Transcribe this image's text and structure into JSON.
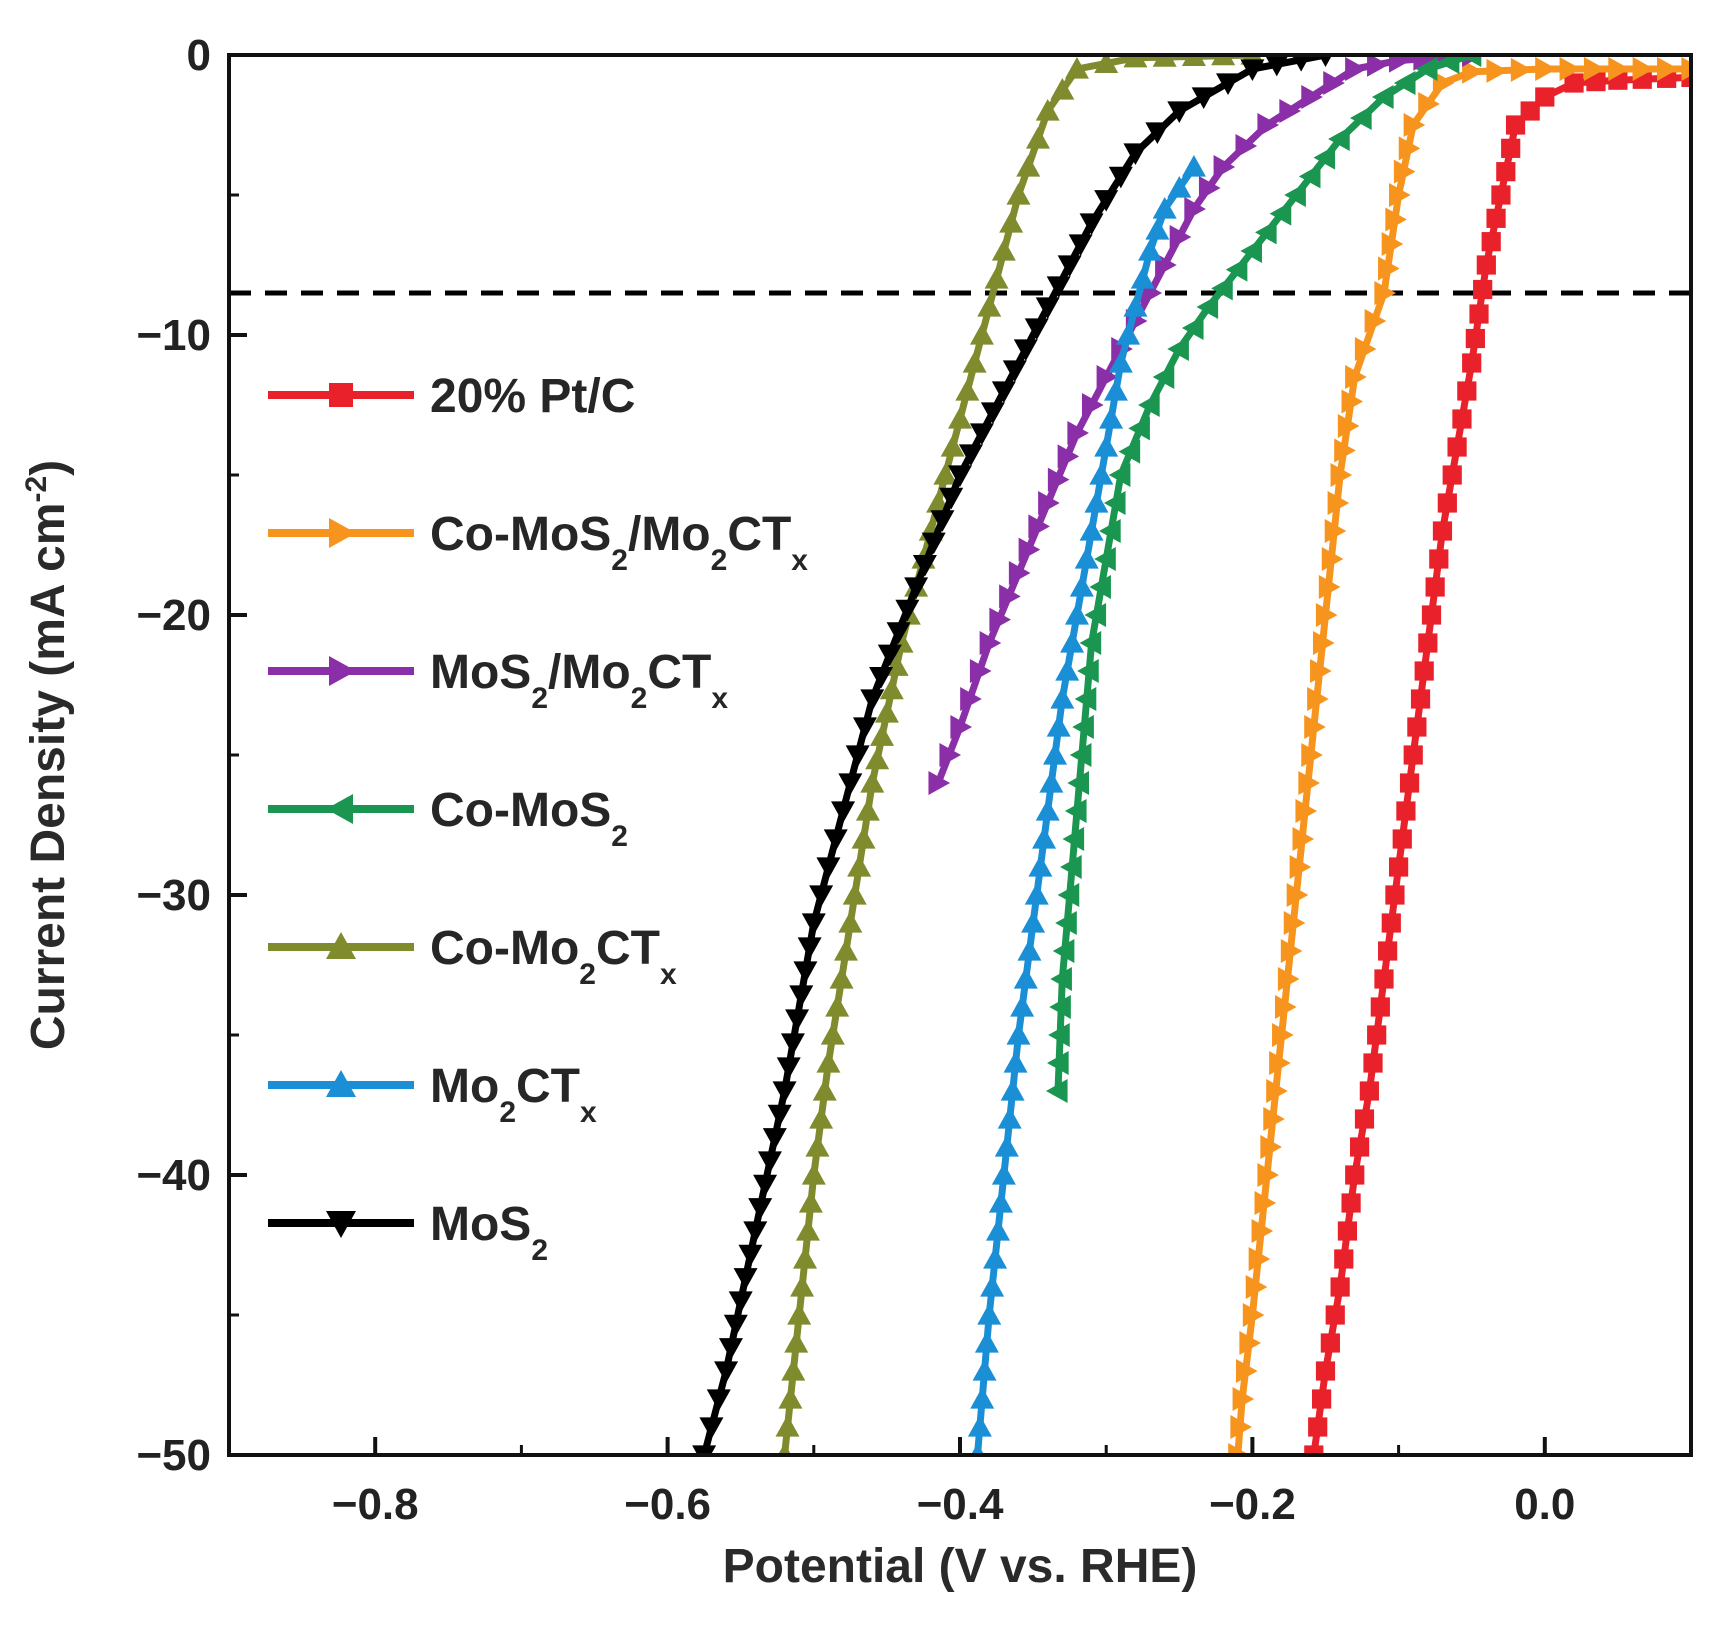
{
  "chart_data": {
    "type": "line",
    "title": "",
    "xlabel": "Potential (V vs. RHE)",
    "ylabel": {
      "main": "Current Density (mA cm",
      "sup": "-2",
      "close": ")"
    },
    "xlim": [
      -0.9,
      0.1
    ],
    "ylim": [
      -50,
      0
    ],
    "x_ticks": [
      -0.8,
      -0.6,
      -0.4,
      -0.2,
      0.0
    ],
    "x_tick_labels": [
      "−0.8",
      "−0.6",
      "−0.4",
      "−0.2",
      "0.0"
    ],
    "y_ticks": [
      0,
      -10,
      -20,
      -30,
      -40,
      -50
    ],
    "y_tick_labels": [
      "0",
      "−10",
      "−20",
      "−30",
      "−40",
      "−50"
    ],
    "reference_line": {
      "y": -8.5,
      "style": "dashed",
      "color": "#000000"
    },
    "legend_position": "left",
    "series": [
      {
        "name": "20% Pt/C",
        "label_parts": [
          {
            "t": "20% Pt/C"
          }
        ],
        "color": "#e8212a",
        "marker": "square",
        "points": [
          [
            0.1,
            -0.8
          ],
          [
            0.05,
            -0.9
          ],
          [
            0.02,
            -1
          ],
          [
            0.0,
            -1.5
          ],
          [
            -0.02,
            -2.5
          ],
          [
            -0.03,
            -5
          ],
          [
            -0.04,
            -7.5
          ],
          [
            -0.05,
            -11
          ],
          [
            -0.06,
            -14
          ],
          [
            -0.07,
            -17
          ],
          [
            -0.08,
            -21
          ],
          [
            -0.09,
            -25
          ],
          [
            -0.1,
            -29
          ],
          [
            -0.11,
            -33
          ],
          [
            -0.12,
            -37
          ],
          [
            -0.13,
            -40
          ],
          [
            -0.14,
            -44
          ],
          [
            -0.15,
            -47
          ],
          [
            -0.158,
            -50
          ]
        ]
      },
      {
        "name": "Co-MoS2/Mo2CTx",
        "label_parts": [
          {
            "t": "Co-MoS"
          },
          {
            "t": "2",
            "sub": true
          },
          {
            "t": "/Mo"
          },
          {
            "t": "2",
            "sub": true
          },
          {
            "t": "CT"
          },
          {
            "t": "x",
            "sub": true
          }
        ],
        "color": "#f7941d",
        "marker": "tri-right",
        "points": [
          [
            0.1,
            -0.5
          ],
          [
            0.0,
            -0.5
          ],
          [
            -0.05,
            -0.6
          ],
          [
            -0.07,
            -1
          ],
          [
            -0.09,
            -2.5
          ],
          [
            -0.1,
            -5
          ],
          [
            -0.11,
            -8.5
          ],
          [
            -0.13,
            -11.5
          ],
          [
            -0.14,
            -15
          ],
          [
            -0.15,
            -20
          ],
          [
            -0.16,
            -25
          ],
          [
            -0.17,
            -30
          ],
          [
            -0.18,
            -35
          ],
          [
            -0.19,
            -40
          ],
          [
            -0.2,
            -45
          ],
          [
            -0.207,
            -48
          ],
          [
            -0.21,
            -50
          ]
        ]
      },
      {
        "name": "MoS2/Mo2CTx",
        "label_parts": [
          {
            "t": "MoS"
          },
          {
            "t": "2",
            "sub": true
          },
          {
            "t": "/Mo"
          },
          {
            "t": "2",
            "sub": true
          },
          {
            "t": "CT"
          },
          {
            "t": "x",
            "sub": true
          }
        ],
        "color": "#8b2fa8",
        "marker": "tri-right",
        "points": [
          [
            -0.05,
            0
          ],
          [
            -0.1,
            -0.2
          ],
          [
            -0.13,
            -0.5
          ],
          [
            -0.16,
            -1.5
          ],
          [
            -0.19,
            -2.5
          ],
          [
            -0.22,
            -4
          ],
          [
            -0.24,
            -5.5
          ],
          [
            -0.26,
            -7.5
          ],
          [
            -0.28,
            -9.5
          ],
          [
            -0.3,
            -11.5
          ],
          [
            -0.32,
            -13.5
          ],
          [
            -0.34,
            -16
          ],
          [
            -0.36,
            -18.5
          ],
          [
            -0.38,
            -21
          ],
          [
            -0.4,
            -24
          ],
          [
            -0.415,
            -26
          ]
        ]
      },
      {
        "name": "Co-MoS2",
        "label_parts": [
          {
            "t": "Co-MoS"
          },
          {
            "t": "2",
            "sub": true
          }
        ],
        "color": "#1a9650",
        "marker": "tri-left",
        "points": [
          [
            -0.05,
            0
          ],
          [
            -0.08,
            -0.5
          ],
          [
            -0.11,
            -1.5
          ],
          [
            -0.14,
            -3
          ],
          [
            -0.17,
            -5
          ],
          [
            -0.2,
            -7
          ],
          [
            -0.23,
            -9
          ],
          [
            -0.25,
            -10.5
          ],
          [
            -0.27,
            -12.5
          ],
          [
            -0.29,
            -15
          ],
          [
            -0.3,
            -18
          ],
          [
            -0.31,
            -21
          ],
          [
            -0.315,
            -24
          ],
          [
            -0.32,
            -27
          ],
          [
            -0.325,
            -30
          ],
          [
            -0.33,
            -33
          ],
          [
            -0.333,
            -37
          ]
        ]
      },
      {
        "name": "Co-Mo2CTx",
        "label_parts": [
          {
            "t": "Co-Mo"
          },
          {
            "t": "2",
            "sub": true
          },
          {
            "t": "CT"
          },
          {
            "t": "x",
            "sub": true
          }
        ],
        "color": "#808b2e",
        "marker": "tri-up",
        "points": [
          [
            -0.2,
            0
          ],
          [
            -0.28,
            -0.1
          ],
          [
            -0.32,
            -0.5
          ],
          [
            -0.34,
            -2
          ],
          [
            -0.36,
            -5
          ],
          [
            -0.375,
            -8
          ],
          [
            -0.39,
            -11
          ],
          [
            -0.405,
            -14
          ],
          [
            -0.42,
            -17
          ],
          [
            -0.44,
            -21
          ],
          [
            -0.46,
            -26
          ],
          [
            -0.475,
            -31
          ],
          [
            -0.49,
            -36
          ],
          [
            -0.5,
            -40
          ],
          [
            -0.51,
            -45
          ],
          [
            -0.52,
            -50
          ]
        ]
      },
      {
        "name": "Mo2CTx",
        "label_parts": [
          {
            "t": "Mo"
          },
          {
            "t": "2",
            "sub": true
          },
          {
            "t": "CT"
          },
          {
            "t": "x",
            "sub": true
          }
        ],
        "color": "#1b8fd6",
        "marker": "tri-up",
        "points": [
          [
            -0.24,
            -4
          ],
          [
            -0.26,
            -5.5
          ],
          [
            -0.27,
            -7
          ],
          [
            -0.28,
            -9
          ],
          [
            -0.29,
            -11
          ],
          [
            -0.3,
            -14
          ],
          [
            -0.31,
            -17
          ],
          [
            -0.32,
            -20
          ],
          [
            -0.33,
            -23
          ],
          [
            -0.34,
            -27
          ],
          [
            -0.35,
            -31
          ],
          [
            -0.36,
            -35
          ],
          [
            -0.37,
            -40
          ],
          [
            -0.38,
            -45
          ],
          [
            -0.388,
            -50
          ]
        ]
      },
      {
        "name": "MoS2",
        "label_parts": [
          {
            "t": "MoS"
          },
          {
            "t": "2",
            "sub": true
          }
        ],
        "color": "#000000",
        "marker": "tri-down",
        "points": [
          [
            -0.15,
            0
          ],
          [
            -0.2,
            -0.5
          ],
          [
            -0.25,
            -2
          ],
          [
            -0.28,
            -3.5
          ],
          [
            -0.31,
            -6
          ],
          [
            -0.34,
            -9
          ],
          [
            -0.37,
            -12
          ],
          [
            -0.4,
            -15
          ],
          [
            -0.43,
            -19
          ],
          [
            -0.46,
            -23
          ],
          [
            -0.48,
            -27
          ],
          [
            -0.5,
            -31
          ],
          [
            -0.52,
            -37
          ],
          [
            -0.54,
            -42
          ],
          [
            -0.56,
            -47
          ],
          [
            -0.575,
            -50
          ]
        ]
      }
    ]
  }
}
